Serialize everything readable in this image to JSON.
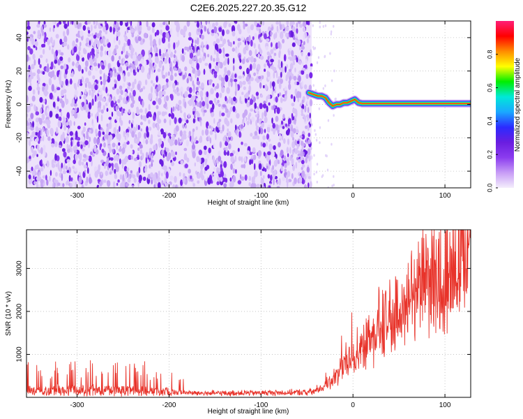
{
  "title": "C2E6.2025.227.20.35.G12",
  "colors": {
    "snr_line": "#e8332a",
    "cbar_stops": [
      "#f4eefc",
      "#c79cf6",
      "#8b3cef",
      "#6a1de0",
      "#2b2bff",
      "#1aa8ff",
      "#00e8d8",
      "#00ee00",
      "#ffff00",
      "#ff8c00",
      "#ff0000",
      "#ff1e78"
    ]
  },
  "chart_data": [
    {
      "type": "heatmap",
      "xlabel": "Height of straight line (km)",
      "ylabel": "Frequency (Hz)",
      "xlim": [
        -355,
        128
      ],
      "ylim": [
        -50,
        50
      ],
      "xticks": [
        -300,
        -200,
        -100,
        0,
        100
      ],
      "xtick_labels": [
        "-300",
        "-200",
        "-100",
        "0",
        "100"
      ],
      "yticks": [
        -40,
        -20,
        0,
        20,
        40
      ],
      "ytick_labels": [
        "-40",
        "-20",
        "0",
        "20",
        "40"
      ],
      "noise_region_x": [
        -355,
        -45
      ],
      "colorbar": {
        "label": "Normalized spectral amplitude",
        "range": [
          0,
          1
        ],
        "ticks": [
          0.0,
          0.2,
          0.4,
          0.6,
          0.8
        ],
        "tick_labels": [
          "0.0",
          "0.2",
          "0.4",
          "0.6",
          "0.8"
        ]
      },
      "signal_trace": {
        "x": [
          -48,
          -43,
          -38,
          -34,
          -30,
          -26,
          -22,
          -18,
          -14,
          -10,
          -6,
          -2,
          2,
          6,
          10,
          20,
          40,
          60,
          80,
          100,
          128
        ],
        "y": [
          7,
          6,
          5,
          5,
          4,
          1,
          -1,
          0,
          0,
          1,
          1,
          2,
          3,
          1,
          0.5,
          0.5,
          0.5,
          0.5,
          0.5,
          0.5,
          0.5
        ]
      }
    },
    {
      "type": "line",
      "xlabel": "Height of straight line (km)",
      "ylabel": "SNR (10 * v/v)",
      "xlim": [
        -355,
        128
      ],
      "ylim": [
        0,
        3900
      ],
      "xticks": [
        -300,
        -200,
        -100,
        0,
        100
      ],
      "xtick_labels": [
        "-300",
        "-200",
        "-100",
        "0",
        "100"
      ],
      "yticks": [
        1000,
        2000,
        3000
      ],
      "ytick_labels": [
        "1000",
        "2000",
        "3000"
      ],
      "series": [
        {
          "x": [
            -355,
            -330,
            -300,
            -270,
            -240,
            -210,
            -190,
            -160,
            -130,
            -100,
            -70,
            -50,
            -40,
            -30,
            -20,
            -10,
            0,
            20,
            40,
            60,
            80,
            100,
            128
          ],
          "y": [
            150,
            160,
            170,
            165,
            160,
            145,
            110,
            95,
            100,
            105,
            110,
            120,
            150,
            270,
            450,
            750,
            1000,
            1450,
            1950,
            2350,
            2750,
            3150,
            3600
          ]
        }
      ]
    }
  ]
}
